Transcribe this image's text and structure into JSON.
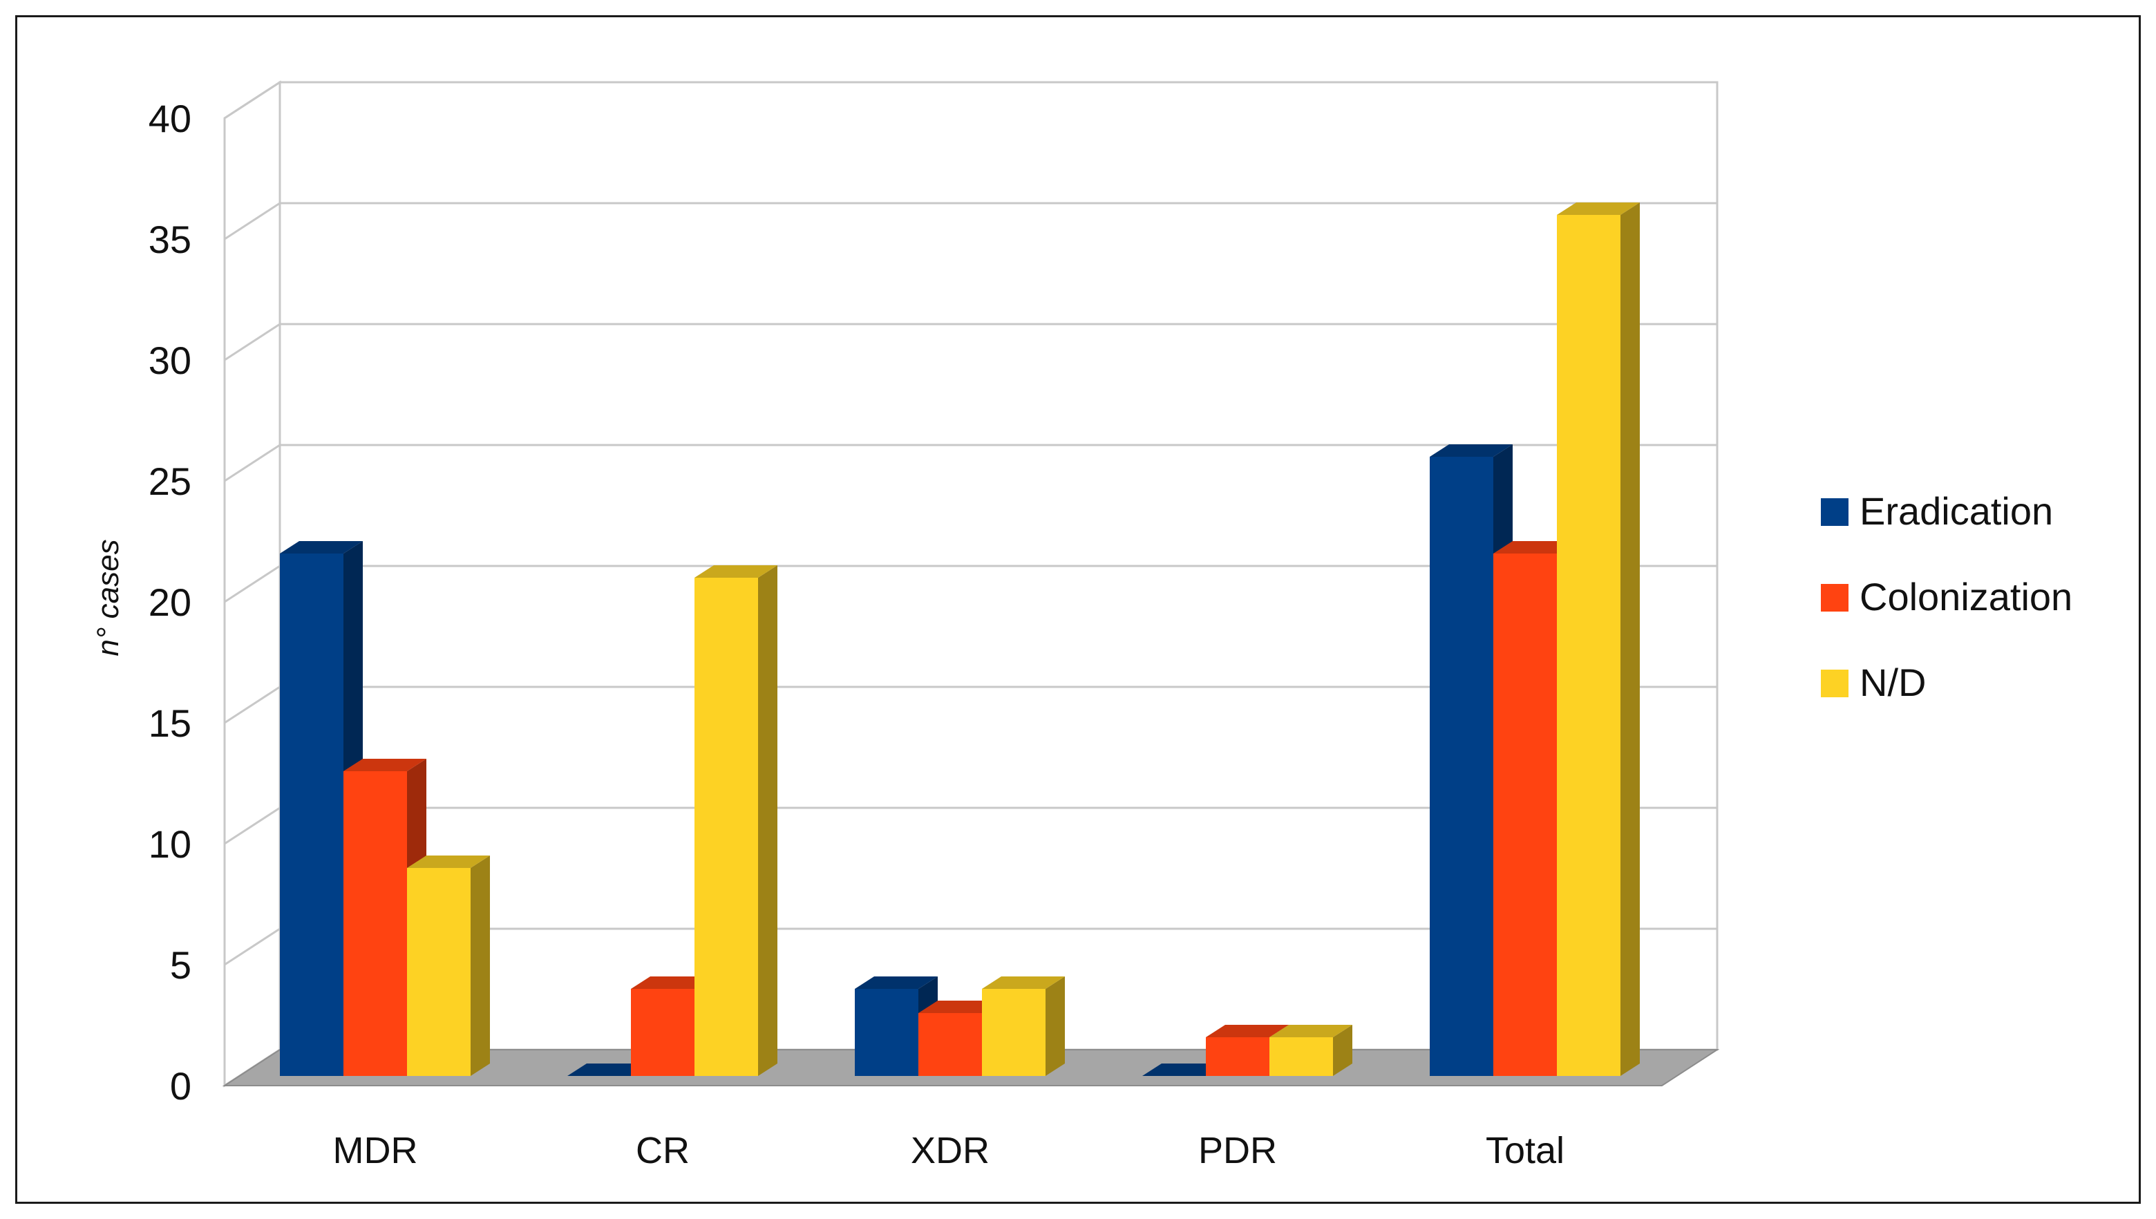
{
  "chart_data": {
    "type": "bar",
    "style": "3d-clustered-column",
    "categories": [
      "MDR",
      "CR",
      "XDR",
      "PDR",
      "Total"
    ],
    "series": [
      {
        "name": "Eradication",
        "color": "#003F87",
        "values": [
          22,
          0,
          4,
          0,
          26
        ]
      },
      {
        "name": "Colonization",
        "color": "#FF4311",
        "values": [
          13,
          4,
          3,
          2,
          22
        ]
      },
      {
        "name": "N/D",
        "color": "#FDD224",
        "values": [
          9,
          21,
          4,
          2,
          36
        ]
      }
    ],
    "xlabel": "",
    "ylabel": "n° cases",
    "ylim": [
      0,
      40
    ],
    "yticks": [
      0,
      5,
      10,
      15,
      20,
      25,
      30,
      35,
      40
    ],
    "ytick_labels": [
      "0",
      "5",
      "10",
      "15",
      "20",
      "25",
      "30",
      "35",
      "40"
    ],
    "grid": true,
    "legend": "right"
  }
}
